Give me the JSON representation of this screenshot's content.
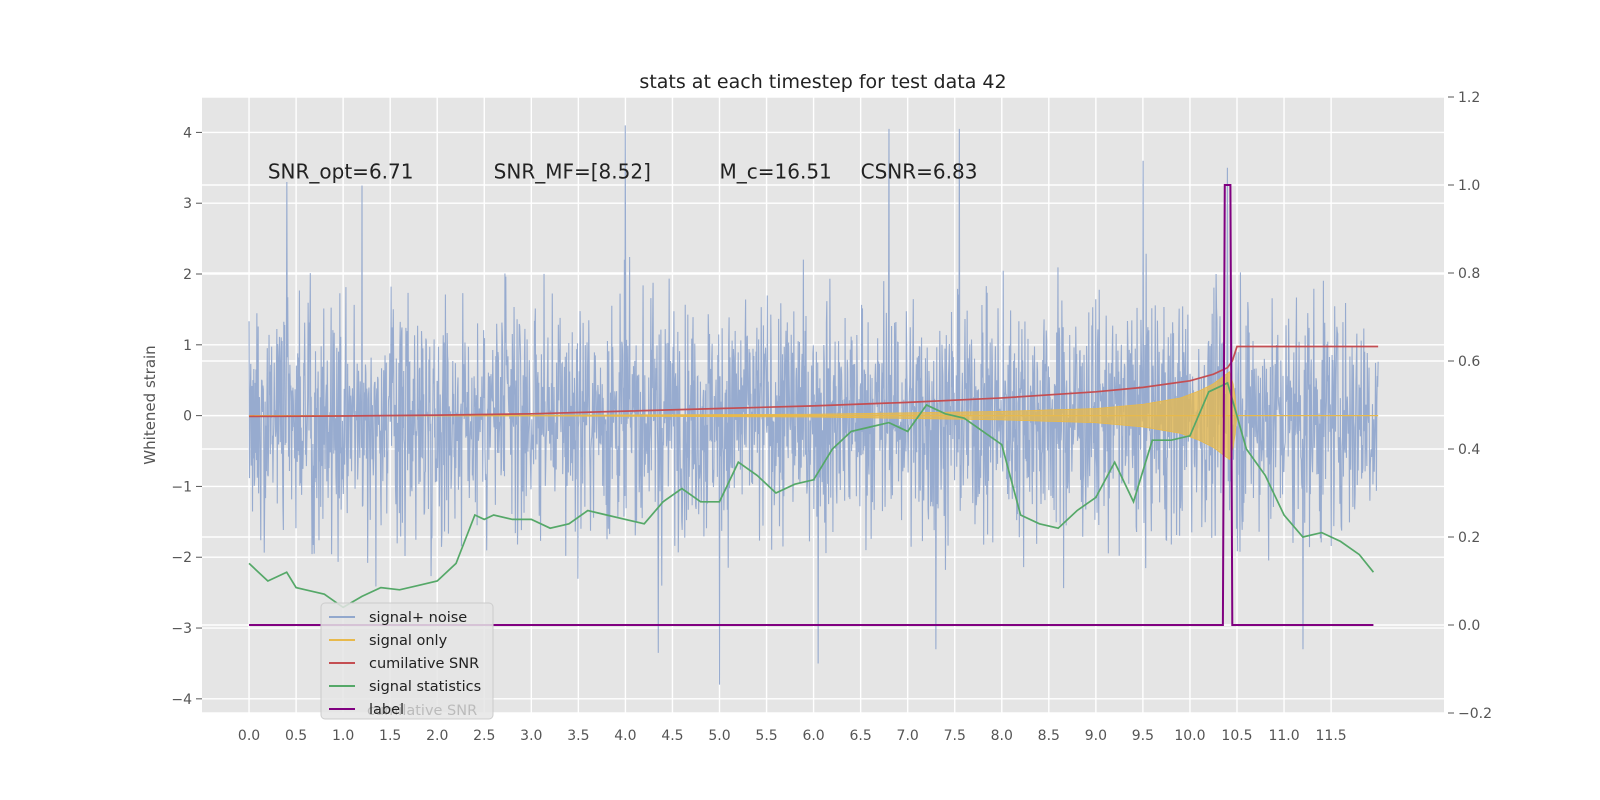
{
  "chart_data": {
    "type": "line",
    "title": "stats at each timestep for test data 42",
    "ylabel": "Whitened strain",
    "xlabel": "",
    "xlim": [
      -0.5,
      12.7
    ],
    "ylim": [
      -4.2,
      4.5
    ],
    "y2lim": [
      -0.2,
      1.2
    ],
    "x_ticks": [
      "0.0",
      "0.5",
      "1.0",
      "1.5",
      "2.0",
      "2.5",
      "3.0",
      "3.5",
      "4.0",
      "4.5",
      "5.0",
      "5.5",
      "6.0",
      "6.5",
      "7.0",
      "7.5",
      "8.0",
      "8.5",
      "9.0",
      "9.5",
      "10.0",
      "10.5",
      "11.0",
      "11.5"
    ],
    "y_ticks": [
      4,
      3,
      2,
      1,
      0,
      -1,
      -2,
      -3,
      -4
    ],
    "y_tick_labels": [
      "4",
      "3",
      "2",
      "1",
      "0",
      "−1",
      "−2",
      "−3",
      "−4"
    ],
    "y2_ticks": [
      1.2,
      1.0,
      0.8,
      0.6,
      0.4,
      0.2,
      0.0,
      -0.2
    ],
    "y2_tick_labels": [
      "1.2",
      "1.0",
      "0.8",
      "0.6",
      "0.4",
      "0.2",
      "0.0",
      "−0.2"
    ],
    "grid": true,
    "legend_position": "lower-left",
    "annotations": [
      {
        "id": "snr-opt",
        "text": "SNR_opt=6.71",
        "x": 0.2,
        "y": 3.35
      },
      {
        "id": "snr-mf",
        "text": "SNR_MF=[8.52]",
        "x": 2.6,
        "y": 3.35
      },
      {
        "id": "mc",
        "text": "M_c=16.51",
        "x": 5.0,
        "y": 3.35
      },
      {
        "id": "csnr",
        "text": "CSNR=6.83",
        "x": 6.5,
        "y": 3.35
      }
    ],
    "series": [
      {
        "name": "signal+ noise",
        "color": "#92a8cd",
        "axis": "left",
        "x_range": [
          0.0,
          12.0
        ],
        "amplitude_typical": 1.0,
        "spikes": [
          {
            "x": 4.0,
            "y": 4.1
          },
          {
            "x": 6.8,
            "y": 4.05
          },
          {
            "x": 7.55,
            "y": 4.05
          },
          {
            "x": 5.0,
            "y": -3.8
          },
          {
            "x": 6.05,
            "y": -3.5
          },
          {
            "x": 4.35,
            "y": -3.35
          },
          {
            "x": 9.5,
            "y": 3.6
          },
          {
            "x": 10.4,
            "y": 3.5
          },
          {
            "x": 11.2,
            "y": -3.3
          },
          {
            "x": 0.4,
            "y": 3.3
          },
          {
            "x": 1.2,
            "y": 3.25
          },
          {
            "x": 7.3,
            "y": -3.3
          }
        ]
      },
      {
        "name": "signal only",
        "color": "#e8b94b",
        "axis": "left",
        "envelope_x": [
          0.0,
          3.0,
          6.0,
          8.0,
          9.0,
          9.5,
          9.9,
          10.1,
          10.25,
          10.35,
          10.42,
          10.47,
          10.5,
          12.0
        ],
        "envelope_y": [
          0.0,
          0.005,
          0.02,
          0.06,
          0.1,
          0.16,
          0.25,
          0.35,
          0.45,
          0.55,
          0.62,
          0.4,
          0.0,
          0.0
        ]
      },
      {
        "name": "cumilative SNR",
        "color": "#c44e52",
        "axis": "right",
        "x": [
          0.0,
          1.0,
          2.0,
          3.0,
          4.0,
          5.0,
          6.0,
          7.0,
          8.0,
          9.0,
          9.5,
          10.0,
          10.25,
          10.4,
          10.45,
          10.5,
          12.0
        ],
        "y": [
          0.474,
          0.475,
          0.477,
          0.48,
          0.486,
          0.492,
          0.498,
          0.506,
          0.516,
          0.53,
          0.54,
          0.555,
          0.57,
          0.585,
          0.6,
          0.633,
          0.633
        ]
      },
      {
        "name": "signal statistics",
        "color": "#55a868",
        "axis": "right",
        "x": [
          0.0,
          0.1,
          0.2,
          0.3,
          0.4,
          0.5,
          0.6,
          0.8,
          1.0,
          1.2,
          1.4,
          1.6,
          1.8,
          2.0,
          2.2,
          2.4,
          2.5,
          2.6,
          2.8,
          3.0,
          3.2,
          3.4,
          3.6,
          3.8,
          4.0,
          4.2,
          4.4,
          4.6,
          4.8,
          5.0,
          5.2,
          5.4,
          5.6,
          5.8,
          6.0,
          6.2,
          6.4,
          6.6,
          6.8,
          7.0,
          7.2,
          7.4,
          7.6,
          7.8,
          8.0,
          8.2,
          8.4,
          8.6,
          8.8,
          9.0,
          9.2,
          9.4,
          9.6,
          9.8,
          10.0,
          10.2,
          10.4,
          10.6,
          10.8,
          11.0,
          11.2,
          11.4,
          11.6,
          11.8,
          11.95
        ],
        "y": [
          0.14,
          0.12,
          0.1,
          0.11,
          0.12,
          0.085,
          0.08,
          0.07,
          0.04,
          0.065,
          0.085,
          0.08,
          0.09,
          0.1,
          0.14,
          0.25,
          0.24,
          0.25,
          0.24,
          0.24,
          0.22,
          0.23,
          0.26,
          0.25,
          0.24,
          0.23,
          0.28,
          0.31,
          0.28,
          0.28,
          0.37,
          0.34,
          0.3,
          0.32,
          0.33,
          0.4,
          0.44,
          0.45,
          0.46,
          0.44,
          0.5,
          0.48,
          0.47,
          0.44,
          0.41,
          0.25,
          0.23,
          0.22,
          0.26,
          0.29,
          0.37,
          0.28,
          0.42,
          0.42,
          0.43,
          0.53,
          0.55,
          0.4,
          0.34,
          0.25,
          0.2,
          0.21,
          0.19,
          0.16,
          0.12
        ]
      },
      {
        "name": "label",
        "color": "#800080",
        "axis": "right",
        "x": [
          0.0,
          10.35,
          10.37,
          10.43,
          10.45,
          11.95
        ],
        "y": [
          0.0,
          0.0,
          1.0,
          1.0,
          0.0,
          0.0
        ]
      }
    ],
    "legend_overlap_text": "cumilative SNR"
  }
}
